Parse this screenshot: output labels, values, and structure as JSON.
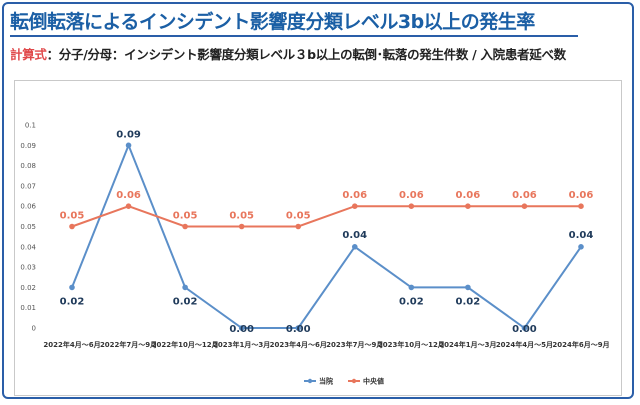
{
  "header": {
    "title": "転倒転落によるインシデント影響度分類レベル3b以上の発生率",
    "formula_label": "計算式",
    "formula_text": "：分子/分母：インシデント影響度分類レベル３b以上の転倒･転落の発生件数 / 入院患者延べ数"
  },
  "colors": {
    "series1": "#5b8fc9",
    "series2": "#e8765c",
    "title": "#1b5fa5",
    "formula_label": "#e0484a"
  },
  "chart_data": {
    "type": "line",
    "title": "",
    "xlabel": "",
    "ylabel": "",
    "ylim": [
      0,
      0.1
    ],
    "yticks": [
      "0",
      "0.01",
      "0.02",
      "0.03",
      "0.04",
      "0.05",
      "0.06",
      "0.07",
      "0.08",
      "0.09",
      "0.1"
    ],
    "grid": false,
    "legend_position": "bottom-center",
    "categories": [
      "2022年4月～6月",
      "2022年7月～9月",
      "2022年10月～12月",
      "2023年1月～3月",
      "2023年4月～6月",
      "2023年7月～9月",
      "2023年10月～12月",
      "2024年1月～3月",
      "2024年4月～5月",
      "2024年6月～9月"
    ],
    "series": [
      {
        "name": "当院",
        "values": [
          0.02,
          0.09,
          0.02,
          0.0,
          0.0,
          0.04,
          0.02,
          0.02,
          0.0,
          0.04
        ],
        "labels": [
          "0.02",
          "0.09",
          "0.02",
          "0.00",
          "0.00",
          "0.04",
          "0.02",
          "0.02",
          "0.00",
          "0.04"
        ]
      },
      {
        "name": "中央値",
        "values": [
          0.05,
          0.06,
          0.05,
          0.05,
          0.05,
          0.06,
          0.06,
          0.06,
          0.06,
          0.06
        ],
        "labels": [
          "0.05",
          "0.06",
          "0.05",
          "0.05",
          "0.05",
          "0.06",
          "0.06",
          "0.06",
          "0.06",
          "0.06"
        ]
      }
    ]
  }
}
